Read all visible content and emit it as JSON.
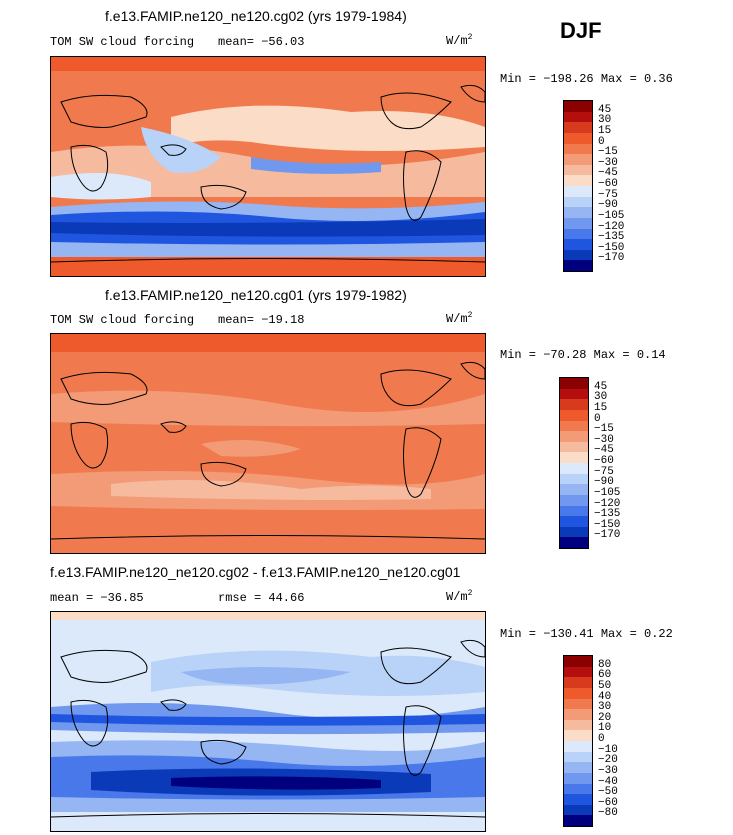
{
  "season": "DJF",
  "units_base": "W/m",
  "units_exp": "2",
  "chart_data": [
    {
      "type": "heatmap",
      "title": "f.e13.FAMIP.ne120_ne120.cg02 (yrs 1979-1984)",
      "variable": "TOM SW cloud forcing",
      "stat_left": "mean= −56.03",
      "stat_mid": "",
      "minmax": "Min = −198.26 Max =   0.36",
      "colorbar_levels": [
        "45",
        "30",
        "15",
        "0",
        "−15",
        "−30",
        "−45",
        "−60",
        "−75",
        "−90",
        "−105",
        "−120",
        "−135",
        "−150",
        "−170"
      ],
      "colorbar_colors": [
        "#8b0000",
        "#b40e0e",
        "#d73a1c",
        "#ee5a2c",
        "#f07a4e",
        "#f39a76",
        "#f6bb9e",
        "#fbdcc6",
        "#dbe9fb",
        "#b9d2f7",
        "#95b6f2",
        "#6f98ee",
        "#4878ea",
        "#2055e0",
        "#0a3ab8",
        "#00007f"
      ],
      "legend": "right"
    },
    {
      "type": "heatmap",
      "title": "f.e13.FAMIP.ne120_ne120.cg01 (yrs 1979-1982)",
      "variable": "TOM SW cloud forcing",
      "stat_left": "mean= −19.18",
      "stat_mid": "",
      "minmax": "Min = −70.28 Max =   0.14",
      "colorbar_levels": [
        "45",
        "30",
        "15",
        "0",
        "−15",
        "−30",
        "−45",
        "−60",
        "−75",
        "−90",
        "−105",
        "−120",
        "−135",
        "−150",
        "−170"
      ],
      "colorbar_colors": [
        "#8b0000",
        "#b40e0e",
        "#d73a1c",
        "#ee5a2c",
        "#f07a4e",
        "#f39a76",
        "#f6bb9e",
        "#fbdcc6",
        "#dbe9fb",
        "#b9d2f7",
        "#95b6f2",
        "#6f98ee",
        "#4878ea",
        "#2055e0",
        "#0a3ab8",
        "#00007f"
      ],
      "legend": "right"
    },
    {
      "type": "heatmap",
      "title": "f.e13.FAMIP.ne120_ne120.cg02 - f.e13.FAMIP.ne120_ne120.cg01",
      "variable": "",
      "stat_left": "mean = −36.85",
      "stat_mid": "rmse =  44.66",
      "minmax": "Min = −130.41 Max =   0.22",
      "colorbar_levels": [
        "80",
        "60",
        "50",
        "40",
        "30",
        "20",
        "10",
        "0",
        "−10",
        "−20",
        "−30",
        "−40",
        "−50",
        "−60",
        "−80"
      ],
      "colorbar_colors": [
        "#8b0000",
        "#b40e0e",
        "#d73a1c",
        "#ee5a2c",
        "#f07a4e",
        "#f39a76",
        "#f6bb9e",
        "#fbdcc6",
        "#dbe9fb",
        "#b9d2f7",
        "#95b6f2",
        "#6f98ee",
        "#4878ea",
        "#2055e0",
        "#0a3ab8",
        "#00007f"
      ],
      "legend": "right"
    }
  ]
}
